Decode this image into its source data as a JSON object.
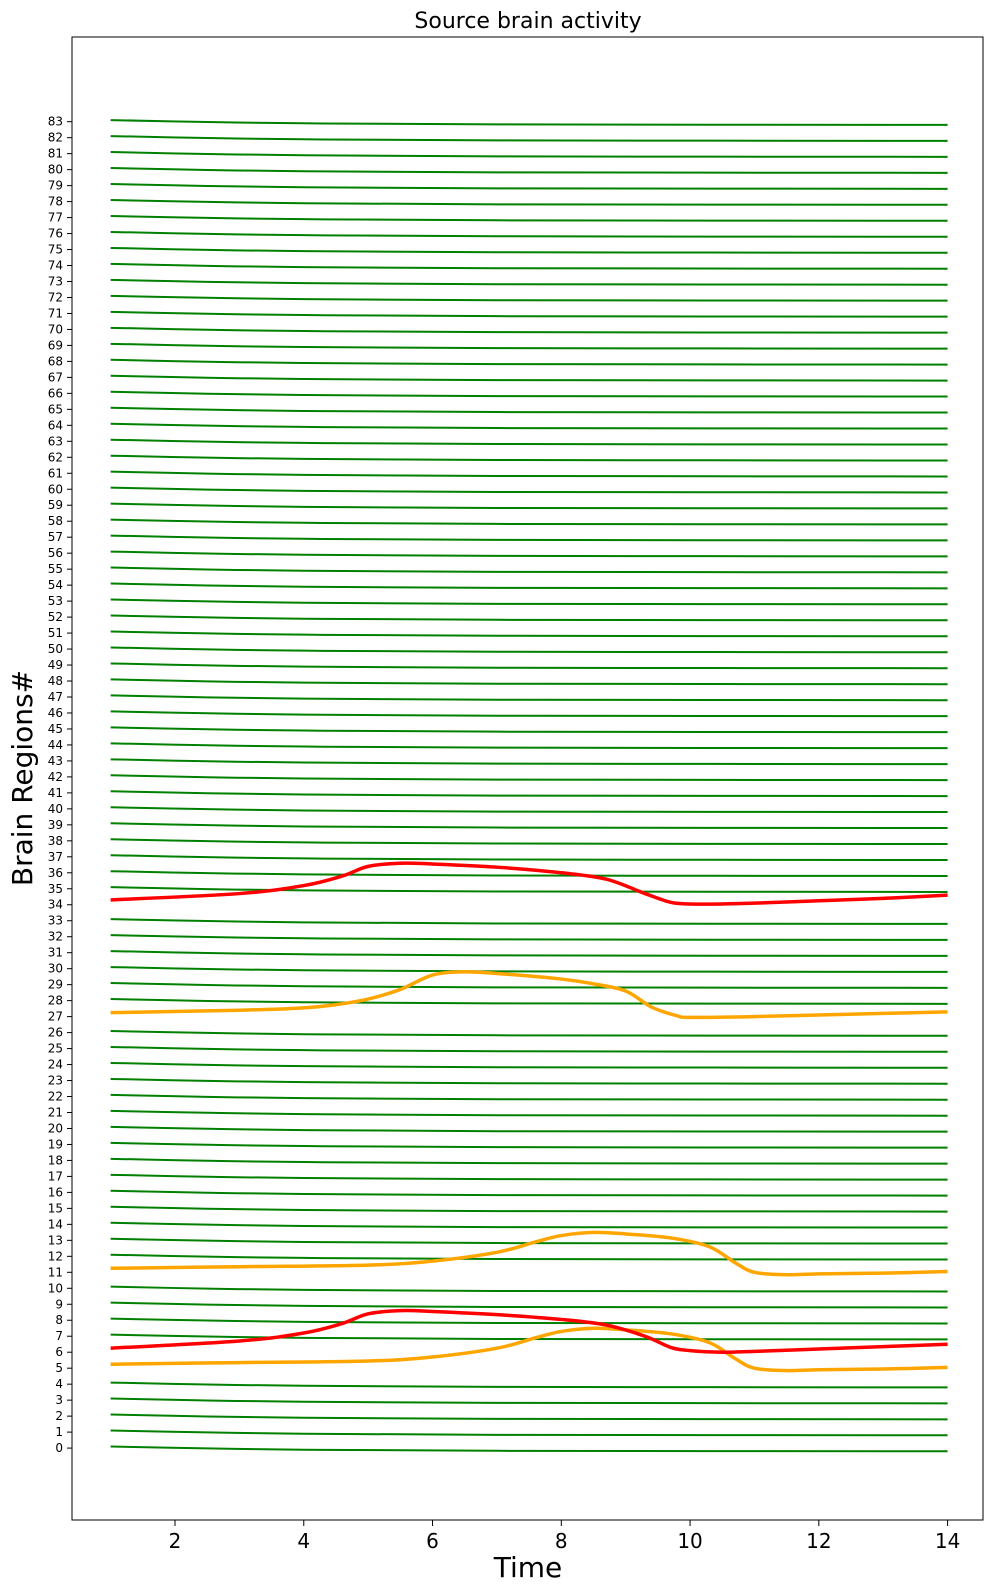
{
  "chart_data": {
    "type": "line",
    "title": "Source brain activity",
    "xlabel": "Time",
    "ylabel": "Brain Regions#",
    "xlim": [
      0.4,
      14.55
    ],
    "ylim": [
      -4.5,
      88.3
    ],
    "xticks": [
      2,
      4,
      6,
      8,
      10,
      12,
      14
    ],
    "yticks": [
      0,
      1,
      2,
      3,
      4,
      5,
      6,
      7,
      8,
      9,
      10,
      11,
      12,
      13,
      14,
      15,
      16,
      17,
      18,
      19,
      20,
      21,
      22,
      23,
      24,
      25,
      26,
      27,
      28,
      29,
      30,
      31,
      32,
      33,
      34,
      35,
      36,
      37,
      38,
      39,
      40,
      41,
      42,
      43,
      44,
      45,
      46,
      47,
      48,
      49,
      50,
      51,
      52,
      53,
      54,
      55,
      56,
      57,
      58,
      59,
      60,
      61,
      62,
      63,
      64,
      65,
      66,
      67,
      68,
      69,
      70,
      71,
      72,
      73,
      74,
      75,
      76,
      77,
      78,
      79,
      80,
      81,
      82,
      83
    ],
    "grid": false,
    "colors": {
      "baseline": "#008000",
      "seizure": "#ff0000",
      "propagation": "#ffa500"
    },
    "baseline_series": {
      "description_regions": "all regions 0-83 except highlighted ones",
      "x": [
        1.0,
        14.0
      ],
      "start_offset": 0.1,
      "end_offset": -0.2
    },
    "series": [
      {
        "region": 6,
        "role": "seizure",
        "color": "#ff0000",
        "linewidth": 3.5,
        "x": [
          1.0,
          3.0,
          4.0,
          4.6,
          5.0,
          5.5,
          6.0,
          7.0,
          8.0,
          8.7,
          9.3,
          9.7,
          10.0,
          10.5,
          11.0,
          12.0,
          13.0,
          14.0
        ],
        "y": [
          6.25,
          6.7,
          7.2,
          7.8,
          8.4,
          8.6,
          8.55,
          8.35,
          8.05,
          7.7,
          7.0,
          6.3,
          6.1,
          6.0,
          6.05,
          6.2,
          6.35,
          6.5
        ]
      },
      {
        "region": 34,
        "role": "seizure",
        "color": "#ff0000",
        "linewidth": 3.5,
        "x": [
          1.0,
          3.0,
          4.0,
          4.6,
          5.0,
          5.5,
          6.0,
          7.0,
          8.0,
          8.7,
          9.3,
          9.7,
          10.0,
          10.5,
          11.0,
          12.0,
          13.0,
          14.0
        ],
        "y": [
          34.3,
          34.7,
          35.2,
          35.8,
          36.4,
          36.6,
          36.55,
          36.35,
          36.0,
          35.6,
          34.7,
          34.15,
          34.05,
          34.05,
          34.1,
          34.25,
          34.4,
          34.6
        ]
      },
      {
        "region": 5,
        "role": "propagation",
        "color": "#ffa500",
        "linewidth": 3.5,
        "x": [
          1.0,
          3.0,
          5.0,
          6.0,
          7.0,
          7.6,
          8.0,
          8.5,
          9.0,
          9.7,
          10.3,
          10.7,
          11.0,
          11.5,
          12.0,
          13.0,
          14.0
        ],
        "y": [
          5.25,
          5.35,
          5.45,
          5.7,
          6.25,
          6.9,
          7.3,
          7.5,
          7.4,
          7.15,
          6.6,
          5.6,
          5.0,
          4.85,
          4.9,
          4.95,
          5.05
        ]
      },
      {
        "region": 11,
        "role": "propagation",
        "color": "#ffa500",
        "linewidth": 3.5,
        "x": [
          1.0,
          3.0,
          5.0,
          6.0,
          7.0,
          7.6,
          8.0,
          8.5,
          9.0,
          9.7,
          10.3,
          10.7,
          11.0,
          11.5,
          12.0,
          13.0,
          14.0
        ],
        "y": [
          11.25,
          11.35,
          11.45,
          11.7,
          12.25,
          12.9,
          13.3,
          13.5,
          13.4,
          13.15,
          12.6,
          11.6,
          11.0,
          10.85,
          10.9,
          10.95,
          11.05
        ]
      },
      {
        "region": 27,
        "role": "propagation",
        "color": "#ffa500",
        "linewidth": 3.5,
        "x": [
          1.0,
          3.0,
          4.0,
          4.5,
          5.0,
          5.5,
          6.0,
          6.5,
          7.0,
          8.0,
          8.5,
          9.0,
          9.4,
          9.8,
          10.0,
          11.0,
          12.0,
          13.0,
          14.0
        ],
        "y": [
          27.25,
          27.4,
          27.55,
          27.75,
          28.1,
          28.7,
          29.6,
          29.8,
          29.7,
          29.35,
          29.05,
          28.6,
          27.6,
          27.05,
          26.95,
          27.0,
          27.1,
          27.2,
          27.3
        ]
      }
    ]
  }
}
